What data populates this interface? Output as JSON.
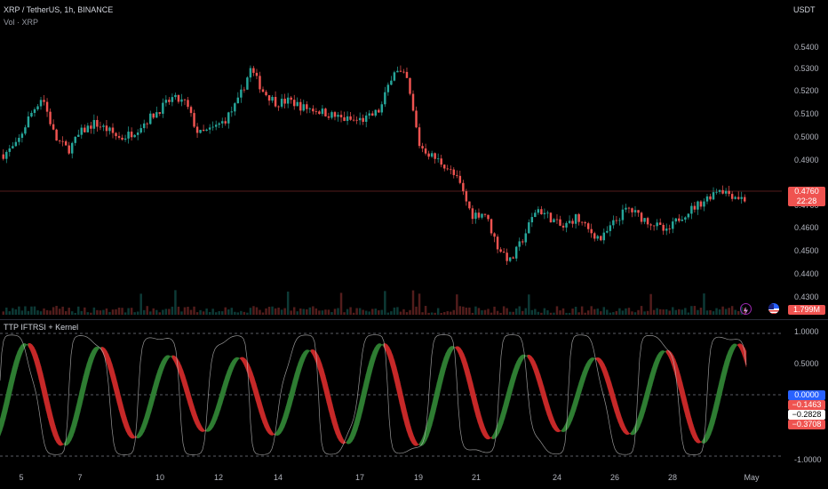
{
  "header": {
    "symbol_line": "XRP / TetherUS, 1h, BINANCE",
    "volume_label": "Vol · XRP",
    "currency": "USDT"
  },
  "price_axis": [
    "0.5400",
    "0.5300",
    "0.5200",
    "0.5100",
    "0.5000",
    "0.4900",
    "0.4700",
    "0.4600",
    "0.4500",
    "0.4400",
    "0.4300"
  ],
  "price_tag": {
    "price": "0.4760",
    "countdown": "22:28"
  },
  "volume_tag": "1.799M",
  "indicator": {
    "title": "TTP IFTRSI + Kernel",
    "axis": [
      "1.0000",
      "0.5000",
      "-0.5000",
      "-1.0000"
    ],
    "tags": [
      "0.0000",
      "−0.1463",
      "−0.2828",
      "−0.3708"
    ]
  },
  "time_axis": [
    "5",
    "7",
    "10",
    "12",
    "14",
    "17",
    "19",
    "21",
    "24",
    "26",
    "28",
    "May"
  ],
  "colors": {
    "up": "#26a69a",
    "down": "#ef5350",
    "fill_up": "#2e7d32",
    "fill_down": "#c62828",
    "price_line": "#ef5350",
    "zero_tag": "#2962ff"
  },
  "icons": [
    "lightning-icon",
    "us-flag-icon"
  ],
  "chart_data": {
    "type": "candlestick",
    "price_series_approx": [
      0.496,
      0.5,
      0.513,
      0.522,
      0.503,
      0.498,
      0.506,
      0.51,
      0.507,
      0.503,
      0.506,
      0.511,
      0.516,
      0.521,
      0.519,
      0.505,
      0.507,
      0.511,
      0.519,
      0.534,
      0.524,
      0.519,
      0.52,
      0.517,
      0.516,
      0.514,
      0.512,
      0.511,
      0.512,
      0.516,
      0.534,
      0.53,
      0.5,
      0.495,
      0.491,
      0.484,
      0.469,
      0.47,
      0.455,
      0.448,
      0.459,
      0.472,
      0.468,
      0.463,
      0.468,
      0.462,
      0.458,
      0.466,
      0.472,
      0.468,
      0.465,
      0.461,
      0.468,
      0.472,
      0.476,
      0.481,
      0.478,
      0.476
    ],
    "current_price": 0.476,
    "ylim": [
      0.428,
      0.553
    ],
    "indicator": {
      "ylim": [
        -1.0,
        1.0
      ],
      "reference_lines": [
        1.0,
        0.0,
        -1.0
      ],
      "last_values": [
        0.0,
        -0.1463,
        -0.2828,
        -0.3708
      ]
    }
  }
}
